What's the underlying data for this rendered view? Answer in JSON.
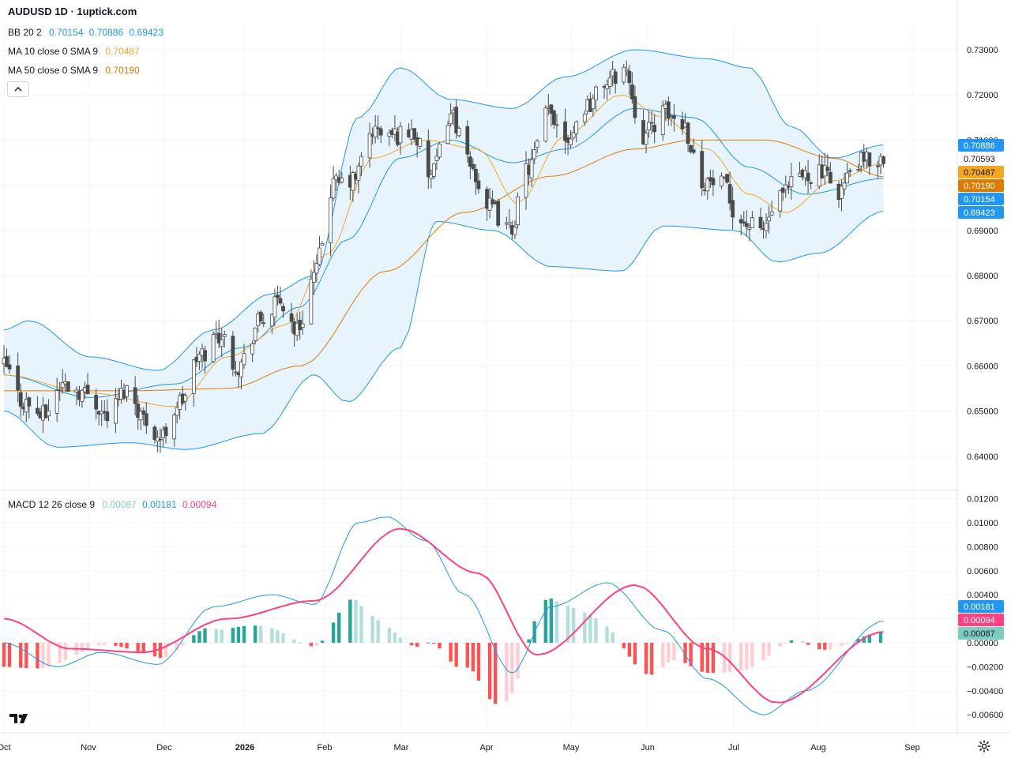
{
  "header": {
    "title": "AUDUSD 1D · 1uptick.com"
  },
  "legend": {
    "bb": {
      "label": "BB 20 2",
      "v1": "0.70154",
      "v2": "0.70886",
      "v3": "0.69423",
      "color": "#2196f3"
    },
    "ma10": {
      "label": "MA 10 close 0 SMA 9",
      "value": "0.70487",
      "color": "#f5a623"
    },
    "ma50": {
      "label": "MA 50 close 0 SMA 9",
      "value": "0.70190",
      "color": "#e07b00"
    },
    "macd": {
      "label": "MACD 12 26 close 9",
      "hist": "0.00087",
      "macd": "0.00181",
      "signal": "0.00094",
      "hist_color": "#80cbc4",
      "macd_color": "#2196f3",
      "signal_color": "#ff4081"
    }
  },
  "icons": {
    "collapse": "chevron-up-icon",
    "logo": "tradingview-logo",
    "settings": "gear-icon"
  },
  "colors": {
    "up": "#ffffff",
    "down": "#4a4a4a",
    "band_fill": "#e3f2fd",
    "grid": "#f0f3fa"
  },
  "chart_data": [
    {
      "type": "candlestick",
      "title": "AUDUSD 1D · 1uptick.com",
      "x_labels": [
        "Oct",
        "Nov",
        "Dec",
        "2026",
        "Feb",
        "Mar",
        "Apr",
        "May",
        "Jun",
        "Jul",
        "Aug",
        "Sep"
      ],
      "ylim": [
        0.63,
        0.73
      ],
      "y_ticks": [
        "0.73000",
        "0.72000",
        "0.71000",
        "0.70000",
        "0.69000",
        "0.68000",
        "0.67000",
        "0.66000",
        "0.65000",
        "0.64000"
      ],
      "anchors": {
        "close": [
          [
            "2025-10-01",
            0.66
          ],
          [
            "2025-10-08",
            0.652
          ],
          [
            "2025-10-15",
            0.649
          ],
          [
            "2025-10-22",
            0.656
          ],
          [
            "2025-10-31",
            0.654
          ],
          [
            "2025-11-07",
            0.649
          ],
          [
            "2025-11-14",
            0.655
          ],
          [
            "2025-11-21",
            0.648
          ],
          [
            "2025-11-26",
            0.644
          ],
          [
            "2025-12-03",
            0.652
          ],
          [
            "2025-12-10",
            0.662
          ],
          [
            "2025-12-17",
            0.667
          ],
          [
            "2025-12-24",
            0.66
          ],
          [
            "2026-01-01",
            0.67
          ],
          [
            "2026-01-08",
            0.674
          ],
          [
            "2026-01-14",
            0.668
          ],
          [
            "2026-01-20",
            0.68
          ],
          [
            "2026-01-27",
            0.7
          ],
          [
            "2026-02-03",
            0.701
          ],
          [
            "2026-02-10",
            0.712
          ],
          [
            "2026-02-17",
            0.711
          ],
          [
            "2026-02-24",
            0.712
          ],
          [
            "2026-03-03",
            0.702
          ],
          [
            "2026-03-10",
            0.716
          ],
          [
            "2026-03-17",
            0.704
          ],
          [
            "2026-03-24",
            0.695
          ],
          [
            "2026-03-31",
            0.69
          ],
          [
            "2026-04-07",
            0.704
          ],
          [
            "2026-04-14",
            0.716
          ],
          [
            "2026-04-21",
            0.711
          ],
          [
            "2026-04-28",
            0.718
          ],
          [
            "2026-05-05",
            0.723
          ],
          [
            "2026-05-11",
            0.726
          ],
          [
            "2026-05-18",
            0.711
          ],
          [
            "2026-05-25",
            0.716
          ],
          [
            "2026-06-01",
            0.714
          ],
          [
            "2026-06-08",
            0.701
          ],
          [
            "2026-06-15",
            0.7
          ],
          [
            "2026-06-22",
            0.692
          ],
          [
            "2026-06-29",
            0.69
          ],
          [
            "2026-07-06",
            0.697
          ],
          [
            "2026-07-13",
            0.702
          ],
          [
            "2026-07-20",
            0.703
          ],
          [
            "2026-07-27",
            0.699
          ],
          [
            "2026-08-03",
            0.705
          ],
          [
            "2026-08-12",
            0.7059
          ]
        ],
        "ma10": [
          [
            "2025-10-01",
            0.658
          ],
          [
            "2025-11-01",
            0.654
          ],
          [
            "2025-12-01",
            0.651
          ],
          [
            "2025-12-20",
            0.662
          ],
          [
            "2026-01-10",
            0.669
          ],
          [
            "2026-01-25",
            0.685
          ],
          [
            "2026-02-10",
            0.706
          ],
          [
            "2026-03-01",
            0.71
          ],
          [
            "2026-03-20",
            0.708
          ],
          [
            "2026-04-03",
            0.696
          ],
          [
            "2026-04-20",
            0.711
          ],
          [
            "2026-05-10",
            0.72
          ],
          [
            "2026-05-25",
            0.715
          ],
          [
            "2026-06-10",
            0.708
          ],
          [
            "2026-06-25",
            0.698
          ],
          [
            "2026-07-08",
            0.694
          ],
          [
            "2026-07-25",
            0.701
          ],
          [
            "2026-08-12",
            0.7049
          ]
        ],
        "ma50": [
          [
            "2025-10-01",
            0.6545
          ],
          [
            "2025-11-15",
            0.6545
          ],
          [
            "2025-12-20",
            0.655
          ],
          [
            "2026-01-15",
            0.66
          ],
          [
            "2026-02-15",
            0.681
          ],
          [
            "2026-03-15",
            0.694
          ],
          [
            "2026-04-15",
            0.702
          ],
          [
            "2026-05-15",
            0.708
          ],
          [
            "2026-06-05",
            0.71
          ],
          [
            "2026-07-01",
            0.71
          ],
          [
            "2026-07-25",
            0.706
          ],
          [
            "2026-08-12",
            0.7019
          ]
        ],
        "bb_mid": [
          [
            "2025-10-01",
            0.658
          ],
          [
            "2025-11-01",
            0.653
          ],
          [
            "2025-12-01",
            0.656
          ],
          [
            "2025-12-25",
            0.664
          ],
          [
            "2026-01-15",
            0.673
          ],
          [
            "2026-02-01",
            0.688
          ],
          [
            "2026-02-20",
            0.706
          ],
          [
            "2026-03-10",
            0.71
          ],
          [
            "2026-04-01",
            0.705
          ],
          [
            "2026-04-20",
            0.708
          ],
          [
            "2026-05-15",
            0.717
          ],
          [
            "2026-06-05",
            0.715
          ],
          [
            "2026-06-25",
            0.704
          ],
          [
            "2026-07-15",
            0.698
          ],
          [
            "2026-08-12",
            0.7015
          ]
        ],
        "bb_upper": [
          [
            "2025-10-01",
            0.668
          ],
          [
            "2025-10-10",
            0.67
          ],
          [
            "2025-11-01",
            0.662
          ],
          [
            "2025-11-25",
            0.659
          ],
          [
            "2025-12-15",
            0.668
          ],
          [
            "2026-01-05",
            0.676
          ],
          [
            "2026-01-20",
            0.68
          ],
          [
            "2026-02-05",
            0.715
          ],
          [
            "2026-02-20",
            0.726
          ],
          [
            "2026-03-10",
            0.719
          ],
          [
            "2026-04-01",
            0.717
          ],
          [
            "2026-04-20",
            0.724
          ],
          [
            "2026-05-15",
            0.73
          ],
          [
            "2026-06-10",
            0.728
          ],
          [
            "2026-06-25",
            0.726
          ],
          [
            "2026-07-10",
            0.713
          ],
          [
            "2026-07-25",
            0.706
          ],
          [
            "2026-08-12",
            0.7089
          ]
        ],
        "bb_lower": [
          [
            "2025-10-01",
            0.65
          ],
          [
            "2025-10-20",
            0.642
          ],
          [
            "2025-11-15",
            0.643
          ],
          [
            "2025-12-05",
            0.6415
          ],
          [
            "2026-01-01",
            0.645
          ],
          [
            "2026-01-20",
            0.658
          ],
          [
            "2026-02-01",
            0.652
          ],
          [
            "2026-02-20",
            0.664
          ],
          [
            "2026-03-05",
            0.692
          ],
          [
            "2026-03-25",
            0.69
          ],
          [
            "2026-04-15",
            0.682
          ],
          [
            "2026-05-10",
            0.681
          ],
          [
            "2026-05-25",
            0.691
          ],
          [
            "2026-06-20",
            0.69
          ],
          [
            "2026-07-05",
            0.683
          ],
          [
            "2026-07-20",
            0.685
          ],
          [
            "2026-08-12",
            0.6942
          ]
        ]
      },
      "last_values": {
        "bb_upper": "0.70886",
        "close": "0.70593",
        "ma10": "0.70487",
        "ma50": "0.70190",
        "bb_mid": "0.70154",
        "bb_lower": "0.69423"
      }
    },
    {
      "type": "macd",
      "title": "MACD 12 26 close 9",
      "ylim": [
        -0.0068,
        0.0125
      ],
      "y_ticks": [
        "0.01200",
        "0.01000",
        "0.00800",
        "0.00600",
        "0.00400",
        "0.00200",
        "0.00000",
        "−0.00200",
        "−0.00400",
        "−0.00600"
      ],
      "anchors": {
        "macd": [
          [
            "2025-10-01",
            0.0
          ],
          [
            "2025-10-20",
            -0.002
          ],
          [
            "2025-11-05",
            -0.0008
          ],
          [
            "2025-11-25",
            -0.0018
          ],
          [
            "2025-12-15",
            0.003
          ],
          [
            "2026-01-05",
            0.004
          ],
          [
            "2026-01-20",
            0.0032
          ],
          [
            "2026-02-05",
            0.01
          ],
          [
            "2026-02-15",
            0.0105
          ],
          [
            "2026-03-01",
            0.0085
          ],
          [
            "2026-03-15",
            0.004
          ],
          [
            "2026-04-01",
            -0.0025
          ],
          [
            "2026-04-15",
            0.003
          ],
          [
            "2026-05-05",
            0.005
          ],
          [
            "2026-05-25",
            0.001
          ],
          [
            "2026-06-10",
            -0.003
          ],
          [
            "2026-06-30",
            -0.006
          ],
          [
            "2026-07-15",
            -0.004
          ],
          [
            "2026-08-12",
            0.0018
          ]
        ],
        "signal": [
          [
            "2025-10-01",
            0.002
          ],
          [
            "2025-10-25",
            -0.0005
          ],
          [
            "2025-11-20",
            -0.0008
          ],
          [
            "2025-12-20",
            0.002
          ],
          [
            "2026-01-20",
            0.0035
          ],
          [
            "2026-02-20",
            0.0095
          ],
          [
            "2026-03-20",
            0.0058
          ],
          [
            "2026-04-10",
            -0.001
          ],
          [
            "2026-05-15",
            0.0048
          ],
          [
            "2026-06-10",
            -0.0005
          ],
          [
            "2026-07-05",
            -0.005
          ],
          [
            "2026-08-12",
            0.0009
          ]
        ]
      }
    }
  ]
}
